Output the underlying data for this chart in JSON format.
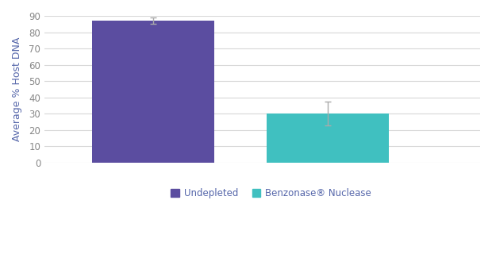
{
  "categories": [
    "Undepleted",
    "Benzonase® Nuclease"
  ],
  "values": [
    87.0,
    30.0
  ],
  "errors_upper": [
    2.0,
    7.5
  ],
  "errors_lower": [
    2.0,
    7.0
  ],
  "bar_colors": [
    "#5b4da0",
    "#40c0c0"
  ],
  "bar_width": 0.28,
  "ylabel": "Average % Host DNA",
  "ylim": [
    0,
    90
  ],
  "yticks": [
    0,
    10,
    20,
    30,
    40,
    50,
    60,
    70,
    80,
    90
  ],
  "background_color": "#ffffff",
  "grid_color": "#d8d8d8",
  "axis_label_color": "#5566aa",
  "tick_label_color": "#888888",
  "error_color": "#aaaaaa",
  "legend_labels": [
    "Undepleted",
    "Benzonase® Nuclease"
  ],
  "legend_colors": [
    "#5b4da0",
    "#40c0c0"
  ],
  "bar_positions": [
    0.25,
    0.65
  ],
  "xlim": [
    0.0,
    1.0
  ],
  "figsize": [
    6.2,
    3.2
  ],
  "dpi": 100
}
